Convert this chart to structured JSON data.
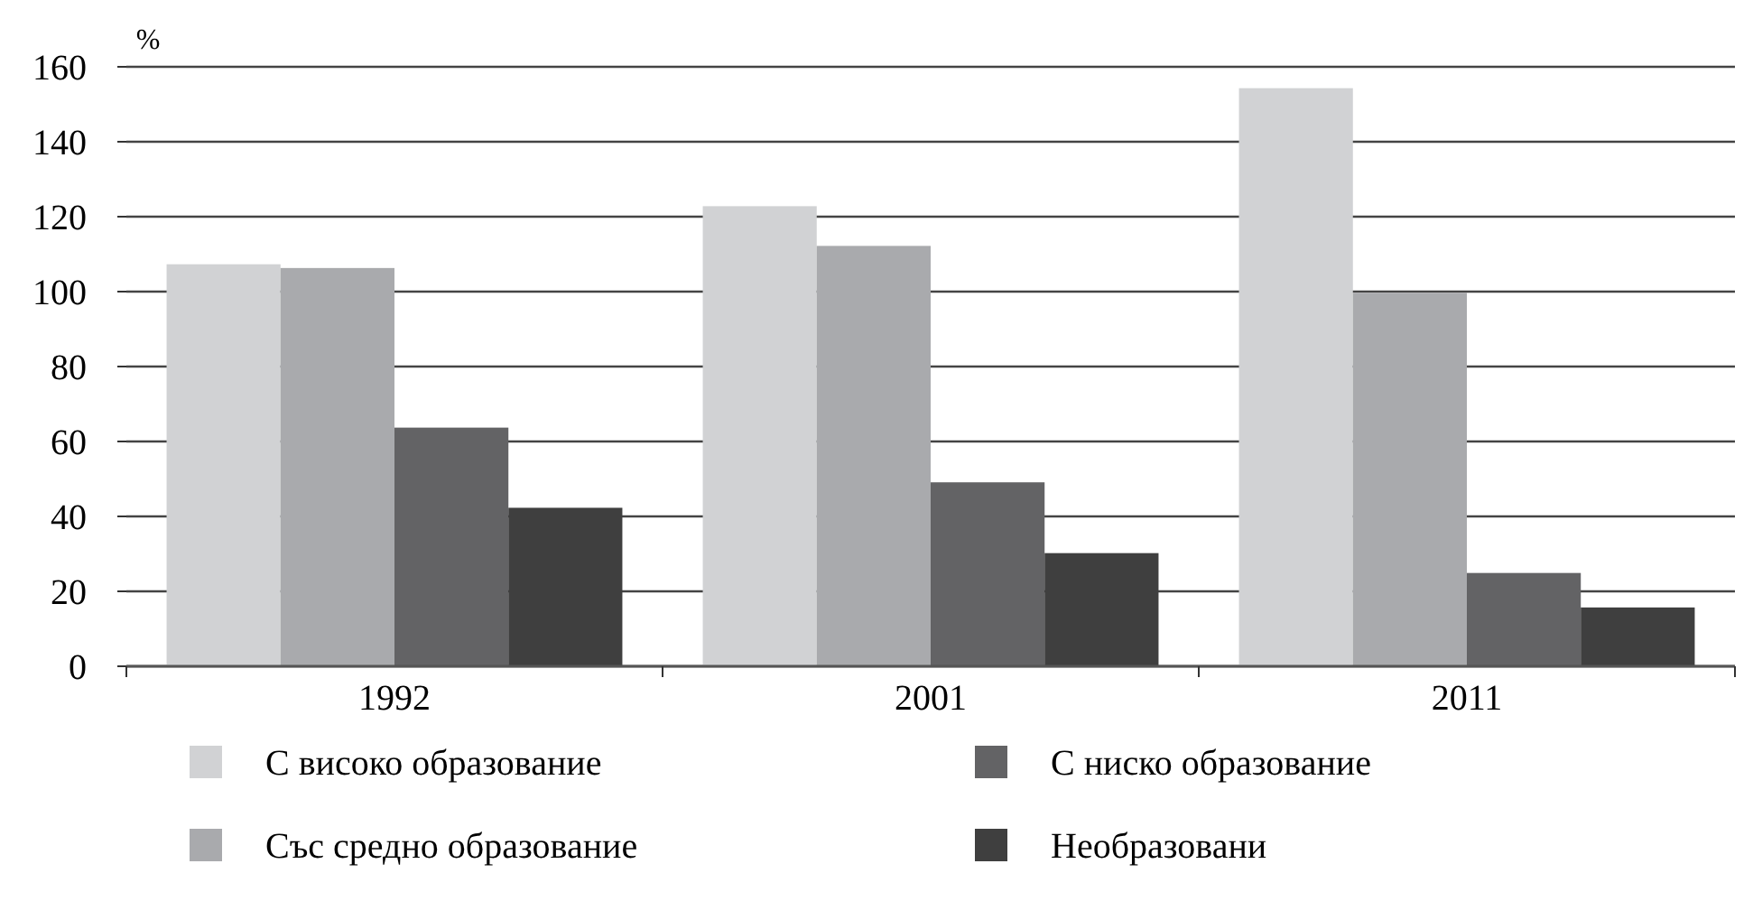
{
  "chart_data": {
    "type": "bar",
    "ylabel": "%",
    "categories": [
      "1992",
      "2001",
      "2011"
    ],
    "series": [
      {
        "name": "С високо образование",
        "color": "#d1d2d4",
        "values": [
          107.3,
          122.8,
          154.3
        ]
      },
      {
        "name": "Със средно образование",
        "color": "#a9aaad",
        "values": [
          106.3,
          112.2,
          99.7
        ]
      },
      {
        "name": "С ниско образование",
        "color": "#636365",
        "values": [
          63.7,
          49.1,
          24.9
        ]
      },
      {
        "name": "Необразовани",
        "color": "#3f3f3f",
        "values": [
          42.3,
          30.2,
          15.7
        ]
      }
    ],
    "ylim": [
      0,
      160
    ],
    "yticks": [
      0,
      20,
      40,
      60,
      80,
      100,
      120,
      140,
      160
    ],
    "grid": "y",
    "legend": "bottom"
  }
}
